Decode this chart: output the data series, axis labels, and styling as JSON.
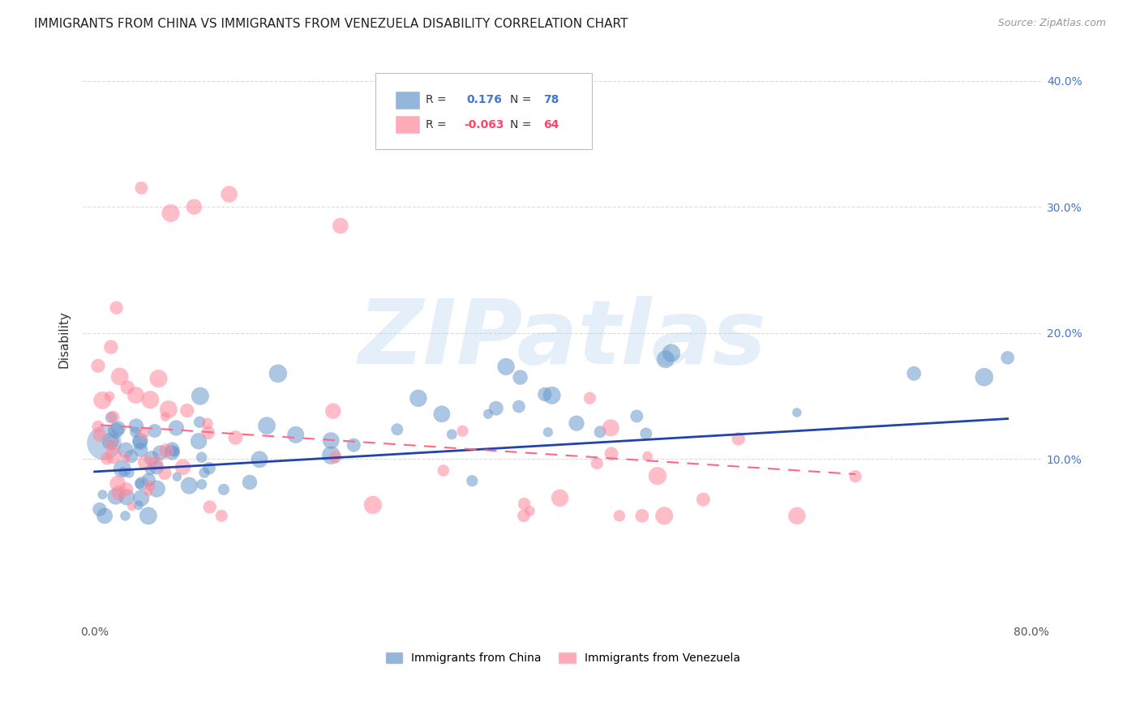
{
  "title": "IMMIGRANTS FROM CHINA VS IMMIGRANTS FROM VENEZUELA DISABILITY CORRELATION CHART",
  "source": "Source: ZipAtlas.com",
  "ylabel": "Disability",
  "china_R": 0.176,
  "china_N": 78,
  "venezuela_R": -0.063,
  "venezuela_N": 64,
  "china_color": "#6699CC",
  "venezuela_color": "#FF8899",
  "china_trend_color": "#2244AA",
  "venezuela_trend_color": "#FF6688",
  "background_color": "#FFFFFF",
  "grid_color": "#CCCCCC",
  "watermark": "ZIPatlas",
  "watermark_color": "#AACCEE",
  "title_fontsize": 11,
  "source_fontsize": 9,
  "right_yticklabels": [
    "10.0%",
    "20.0%",
    "30.0%",
    "40.0%"
  ],
  "right_yticks": [
    0.1,
    0.2,
    0.3,
    0.4
  ],
  "xticklabels": [
    "0.0%",
    "",
    "",
    "",
    "",
    "",
    "",
    "",
    "80.0%"
  ],
  "xticks": [
    0.0,
    0.1,
    0.2,
    0.3,
    0.4,
    0.5,
    0.6,
    0.7,
    0.8
  ]
}
